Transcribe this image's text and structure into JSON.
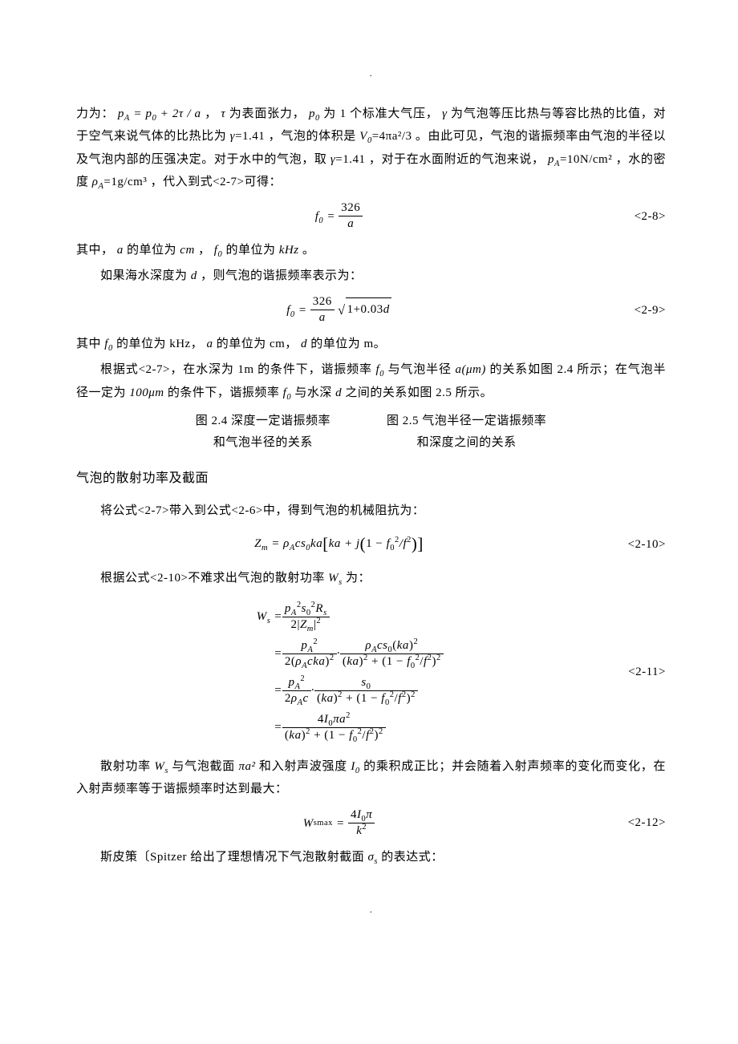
{
  "dot": ".",
  "para1_a": "力为：",
  "para1_eq1": "p",
  "para1_b": "为表面张力，",
  "para1_c": "为 1 个标准大气压，",
  "para1_d": "为气泡等压比热与等容比热的比值，对于空气来说气体的比热比为",
  "para1_gamma_eq_rhs": "=1.41",
  "para1_e": "，气泡的体积是",
  "para1_V0_eq_rhs": "=4πa²/3",
  "para1_f": "。由此可见，气泡的谐振频率由气泡的半径以及气泡内部的压强决定。对于水中的气泡，取",
  "para1_g": "，对于在水面附近的气泡来说，",
  "para1_pA_eq_rhs": "=10N/cm²",
  "para1_h": "，水的密度",
  "para1_rho_eq_rhs": "=1g/cm³",
  "para1_i": "，代入到式<2-7>可得：",
  "eq28_num": "<2-8>",
  "eq28_lhs": "f",
  "eq28_frac_num": "326",
  "eq28_frac_den": "a",
  "para2_a": "其中，",
  "para2_b": " 的单位为",
  "para2_cm": "cm",
  "para2_c": "，",
  "para2_d": "的单位为",
  "para2_kHz": "kHz",
  "para2_e": " 。",
  "para3": "如果海水深度为",
  "para3_b": "，则气泡的谐振频率表示为：",
  "eq29_num": "<2-9>",
  "eq29_sqrt": "1+0.03d",
  "para4_a": "其中",
  "para4_b": "的单位为 kHz，",
  "para4_c": " 的单位为 cm，",
  "para4_d": " 的单位为 m。",
  "para5_a": "根据式<2-7>，在水深为 1m 的条件下，谐振频率",
  "para5_b": "与气泡半径",
  "para5_a_unit": "a(μm)",
  "para5_c": "的关系如图 2.4 所示；在气泡半径一定为",
  "para5_100um": "100μm",
  "para5_d": "的条件下，谐振频率",
  "para5_e": "与水深",
  "para5_f": "之间的关系如图 2.5 所示。",
  "fig24_l1": "图 2.4  深度一定谐振频率",
  "fig24_l2": "和气泡半径的关系",
  "fig25_l1": "图 2.5  气泡半径一定谐振频率",
  "fig25_l2": "和深度之间的关系",
  "sec_title": "气泡的散射功率及截面",
  "para6": "将公式<2-7>带入到公式<2-6>中，得到气泡的机械阻抗为：",
  "eq210_num": "<2-10>",
  "para7_a": "根据公式<2-10>不难求出气泡的散射功率",
  "para7_b": "为：",
  "eq211_num": "<2-11>",
  "para8_a": "散射功率",
  "para8_b": "与气泡截面",
  "para8_c": "和入射声波强度",
  "para8_d": "的乘积成正比；并会随着入射声频率的变化而变化，在入射声频率等于谐振频率时达到最大：",
  "eq212_num": "<2-12>",
  "para9_a": "斯皮策〔Spitzer 给出了理想情况下气泡散射截面",
  "para9_b": "的表达式：",
  "sym_a": "a",
  "sym_d": "d",
  "sym_f0": "f",
  "sym_gamma": "γ",
  "sym_tau": "τ",
  "sym_p0": "p",
  "sym_pA": "p",
  "sym_V0": "V",
  "sym_rhoA": "ρ",
  "sym_Ws": "W",
  "sym_I0": "I",
  "sym_sigma_s": "σ",
  "sym_pi_a2": "πa²"
}
